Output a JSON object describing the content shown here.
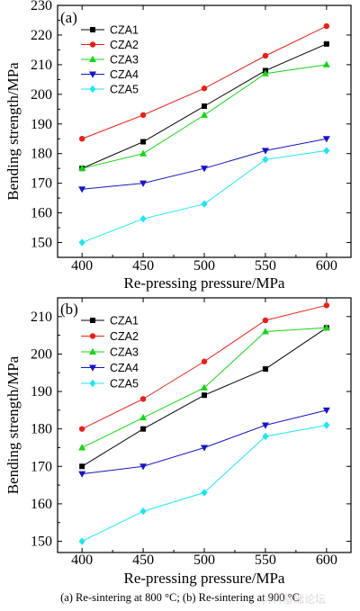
{
  "colors": {
    "CZA1": "#000000",
    "CZA2": "#e8201a",
    "CZA3": "#16d616",
    "CZA4": "#1515c8",
    "CZA5": "#1ee6f0"
  },
  "markers": {
    "CZA1": "square",
    "CZA2": "circle",
    "CZA3": "triangle-up",
    "CZA4": "triangle-down",
    "CZA5": "diamond"
  },
  "chart_data": [
    {
      "type": "line",
      "panel_label": "(a)",
      "x": [
        400,
        450,
        500,
        550,
        600
      ],
      "xlabel": "Re-pressing pressure/MPa",
      "ylabel": "Bending strength/MPa",
      "xlim": [
        380,
        620
      ],
      "ylim": [
        145,
        230
      ],
      "xticks": [
        400,
        450,
        500,
        550,
        600
      ],
      "yticks": [
        150,
        160,
        170,
        180,
        190,
        200,
        210,
        220,
        230
      ],
      "legend_position": "top-left",
      "grid": false,
      "series": [
        {
          "name": "CZA1",
          "values": [
            175,
            184,
            196,
            208,
            217
          ]
        },
        {
          "name": "CZA2",
          "values": [
            185,
            193,
            202,
            213,
            223
          ]
        },
        {
          "name": "CZA3",
          "values": [
            175,
            180,
            193,
            207,
            210
          ]
        },
        {
          "name": "CZA4",
          "values": [
            168,
            170,
            175,
            181,
            185
          ]
        },
        {
          "name": "CZA5",
          "values": [
            150,
            158,
            163,
            178,
            181
          ]
        }
      ]
    },
    {
      "type": "line",
      "panel_label": "(b)",
      "x": [
        400,
        450,
        500,
        550,
        600
      ],
      "xlabel": "Re-pressing pressure/MPa",
      "ylabel": "Bending strength/MPa",
      "xlim": [
        380,
        620
      ],
      "ylim": [
        147,
        215
      ],
      "xticks": [
        400,
        450,
        500,
        550,
        600
      ],
      "yticks": [
        150,
        160,
        170,
        180,
        190,
        200,
        210
      ],
      "legend_position": "top-left",
      "grid": false,
      "series": [
        {
          "name": "CZA1",
          "values": [
            170,
            180,
            189,
            196,
            207
          ]
        },
        {
          "name": "CZA2",
          "values": [
            180,
            188,
            198,
            209,
            213
          ]
        },
        {
          "name": "CZA3",
          "values": [
            175,
            183,
            191,
            206,
            207
          ]
        },
        {
          "name": "CZA4",
          "values": [
            168,
            170,
            175,
            181,
            185
          ]
        },
        {
          "name": "CZA5",
          "values": [
            150,
            158,
            163,
            178,
            181
          ]
        }
      ]
    }
  ],
  "caption": "(a)  Re-sintering  at  800 °C;  (b)  Re-sintering at 900 °C",
  "watermark": "材料基础论坛"
}
